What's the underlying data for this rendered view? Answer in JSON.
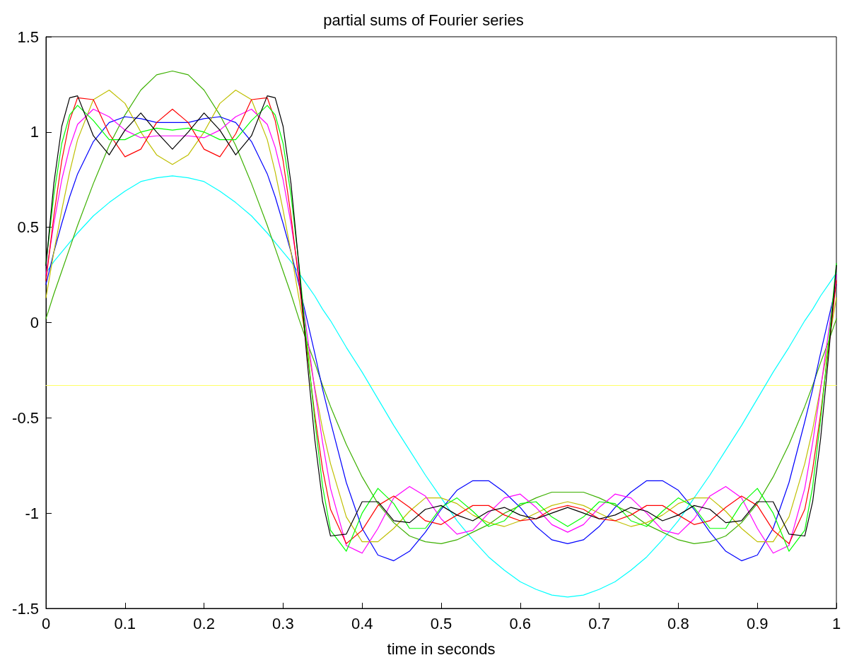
{
  "chart_data": {
    "type": "line",
    "title": "partial sums of Fourier series",
    "xlabel": "time in seconds",
    "x": [
      0,
      0.01,
      0.02,
      0.03,
      0.04,
      0.06,
      0.08,
      0.1,
      0.12,
      0.14,
      0.16,
      0.18,
      0.2,
      0.22,
      0.24,
      0.26,
      0.28,
      0.29,
      0.3,
      0.31,
      0.32,
      0.33,
      0.34,
      0.35,
      0.36,
      0.38,
      0.4,
      0.42,
      0.44,
      0.46,
      0.48,
      0.5,
      0.52,
      0.54,
      0.56,
      0.58,
      0.6,
      0.62,
      0.64,
      0.66,
      0.68,
      0.7,
      0.72,
      0.74,
      0.76,
      0.78,
      0.8,
      0.82,
      0.84,
      0.86,
      0.88,
      0.9,
      0.92,
      0.94,
      0.96,
      0.97,
      0.98,
      0.99,
      1
    ],
    "xlim": [
      0,
      1
    ],
    "xticks": [
      0,
      0.1,
      0.2,
      0.3,
      0.4,
      0.5,
      0.6,
      0.7,
      0.8,
      0.9,
      1
    ],
    "ylim": [
      -1.5,
      1.5
    ],
    "yticks": [
      -1.5,
      -1,
      -0.5,
      0,
      0.5,
      1,
      1.5
    ],
    "marker": "none",
    "line_style": "solid",
    "series": [
      {
        "color": "#ffff66",
        "x": [
          0,
          1
        ],
        "values": [
          -0.33,
          -0.33
        ]
      },
      {
        "color": "#00ffff",
        "values": [
          0.26,
          0.32,
          0.37,
          0.42,
          0.47,
          0.56,
          0.63,
          0.69,
          0.74,
          0.76,
          0.77,
          0.76,
          0.74,
          0.69,
          0.63,
          0.56,
          0.47,
          0.42,
          0.37,
          0.32,
          0.26,
          0.2,
          0.14,
          0.07,
          0.01,
          -0.13,
          -0.26,
          -0.4,
          -0.54,
          -0.67,
          -0.8,
          -0.92,
          -1.04,
          -1.14,
          -1.23,
          -1.3,
          -1.36,
          -1.4,
          -1.43,
          -1.44,
          -1.43,
          -1.4,
          -1.36,
          -1.3,
          -1.23,
          -1.14,
          -1.04,
          -0.92,
          -0.8,
          -0.67,
          -0.54,
          -0.4,
          -0.26,
          -0.13,
          0.01,
          0.07,
          0.14,
          0.2,
          0.26
        ]
      },
      {
        "color": "#3cb000",
        "values": [
          0.02,
          0.15,
          0.27,
          0.39,
          0.51,
          0.73,
          0.93,
          1.09,
          1.22,
          1.3,
          1.32,
          1.3,
          1.22,
          1.09,
          0.93,
          0.73,
          0.51,
          0.39,
          0.27,
          0.15,
          0.02,
          -0.1,
          -0.21,
          -0.33,
          -0.44,
          -0.64,
          -0.81,
          -0.95,
          -1.05,
          -1.12,
          -1.15,
          -1.16,
          -1.14,
          -1.1,
          -1.06,
          -1,
          -0.96,
          -0.92,
          -0.89,
          -0.89,
          -0.89,
          -0.92,
          -0.96,
          -1,
          -1.06,
          -1.1,
          -1.14,
          -1.16,
          -1.15,
          -1.12,
          -1.05,
          -0.95,
          -0.81,
          -0.64,
          -0.44,
          -0.33,
          -0.21,
          -0.1,
          0.02
        ]
      },
      {
        "color": "#0000ff",
        "values": [
          0.2,
          0.37,
          0.52,
          0.66,
          0.78,
          0.95,
          1.05,
          1.08,
          1.07,
          1.05,
          1.05,
          1.05,
          1.07,
          1.08,
          1.05,
          0.95,
          0.78,
          0.66,
          0.52,
          0.37,
          0.2,
          0.02,
          -0.16,
          -0.35,
          -0.52,
          -0.84,
          -1.08,
          -1.22,
          -1.25,
          -1.2,
          -1.1,
          -0.98,
          -0.88,
          -0.83,
          -0.83,
          -0.89,
          -0.97,
          -1.07,
          -1.14,
          -1.16,
          -1.14,
          -1.07,
          -0.97,
          -0.89,
          -0.83,
          -0.83,
          -0.88,
          -0.98,
          -1.1,
          -1.2,
          -1.25,
          -1.22,
          -1.08,
          -0.84,
          -0.52,
          -0.35,
          -0.16,
          0.02,
          0.2
        ]
      },
      {
        "color": "#bfbf00",
        "values": [
          0.13,
          0.37,
          0.59,
          0.79,
          0.96,
          1.17,
          1.22,
          1.15,
          1,
          0.88,
          0.83,
          0.88,
          1,
          1.15,
          1.22,
          1.17,
          0.96,
          0.79,
          0.59,
          0.37,
          0.13,
          -0.11,
          -0.34,
          -0.56,
          -0.74,
          -1.02,
          -1.15,
          -1.15,
          -1.08,
          -0.99,
          -0.92,
          -0.92,
          -0.95,
          -1.01,
          -1.05,
          -1.07,
          -1.04,
          -1,
          -0.96,
          -0.94,
          -0.96,
          -1,
          -1.04,
          -1.07,
          -1.05,
          -1.01,
          -0.95,
          -0.92,
          -0.92,
          -0.99,
          -1.08,
          -1.15,
          -1.15,
          -1.02,
          -0.74,
          -0.56,
          -0.34,
          -0.11,
          0.13
        ]
      },
      {
        "color": "#ff00ff",
        "values": [
          0.25,
          0.52,
          0.75,
          0.92,
          1.04,
          1.12,
          1.08,
          1.01,
          0.97,
          0.98,
          0.98,
          0.98,
          0.97,
          1.01,
          1.08,
          1.12,
          1.04,
          0.92,
          0.75,
          0.52,
          0.25,
          -0.05,
          -0.35,
          -0.63,
          -0.87,
          -1.17,
          -1.21,
          -1.08,
          -0.92,
          -0.86,
          -0.91,
          -1.03,
          -1.11,
          -1.09,
          -1,
          -0.92,
          -0.9,
          -0.97,
          -1.06,
          -1.1,
          -1.06,
          -0.97,
          -0.9,
          -0.92,
          -1,
          -1.09,
          -1.11,
          -1.03,
          -0.91,
          -0.86,
          -0.92,
          -1.08,
          -1.21,
          -1.17,
          -0.87,
          -0.63,
          -0.35,
          -0.05,
          0.25
        ]
      },
      {
        "color": "#ff0000",
        "values": [
          0.22,
          0.56,
          0.85,
          1.06,
          1.18,
          1.17,
          0.99,
          0.87,
          0.91,
          1.05,
          1.12,
          1.05,
          0.91,
          0.87,
          0.99,
          1.17,
          1.18,
          1.06,
          0.85,
          0.56,
          0.22,
          -0.14,
          -0.48,
          -0.77,
          -0.98,
          -1.16,
          -1.09,
          -0.96,
          -0.91,
          -0.97,
          -1.04,
          -1.06,
          -1.01,
          -0.96,
          -0.96,
          -1.01,
          -1.04,
          -1.03,
          -0.98,
          -0.96,
          -0.98,
          -1.03,
          -1.04,
          -1.01,
          -0.96,
          -0.96,
          -1.01,
          -1.06,
          -1.04,
          -0.97,
          -0.91,
          -0.96,
          -1.09,
          -1.16,
          -0.98,
          -0.77,
          -0.48,
          -0.14,
          0.22
        ]
      },
      {
        "color": "#00ff00",
        "values": [
          0.31,
          0.67,
          0.94,
          1.09,
          1.14,
          1.06,
          0.96,
          0.96,
          1,
          1.02,
          1.01,
          1.02,
          1,
          0.96,
          0.96,
          1.06,
          1.14,
          1.09,
          0.94,
          0.67,
          0.31,
          -0.11,
          -0.51,
          -0.86,
          -1.09,
          -1.2,
          -1,
          -0.87,
          -0.95,
          -1.08,
          -1.08,
          -0.97,
          -0.92,
          -0.99,
          -1.07,
          -1.04,
          -0.95,
          -0.94,
          -1.02,
          -1.07,
          -1.02,
          -0.94,
          -0.95,
          -1.04,
          -1.07,
          -0.99,
          -0.92,
          -0.97,
          -1.08,
          -1.08,
          -0.95,
          -0.87,
          -1,
          -1.2,
          -1.09,
          -0.86,
          -0.51,
          -0.11,
          0.31
        ]
      },
      {
        "color": "#000000",
        "values": [
          0.3,
          0.73,
          1.03,
          1.18,
          1.19,
          0.98,
          0.88,
          1.01,
          1.1,
          1,
          0.91,
          1,
          1.1,
          1.01,
          0.88,
          0.98,
          1.19,
          1.18,
          1.03,
          0.73,
          0.3,
          -0.18,
          -0.61,
          -0.94,
          -1.12,
          -1.11,
          -0.94,
          -0.94,
          -1.04,
          -1.05,
          -0.98,
          -0.96,
          -1.01,
          -1.04,
          -0.99,
          -0.97,
          -1.01,
          -1.03,
          -1,
          -0.97,
          -1,
          -1.03,
          -1.01,
          -0.97,
          -0.99,
          -1.04,
          -1.01,
          -0.96,
          -0.98,
          -1.05,
          -1.04,
          -0.94,
          -0.94,
          -1.11,
          -1.12,
          -0.94,
          -0.61,
          -0.18,
          0.3
        ]
      }
    ]
  }
}
